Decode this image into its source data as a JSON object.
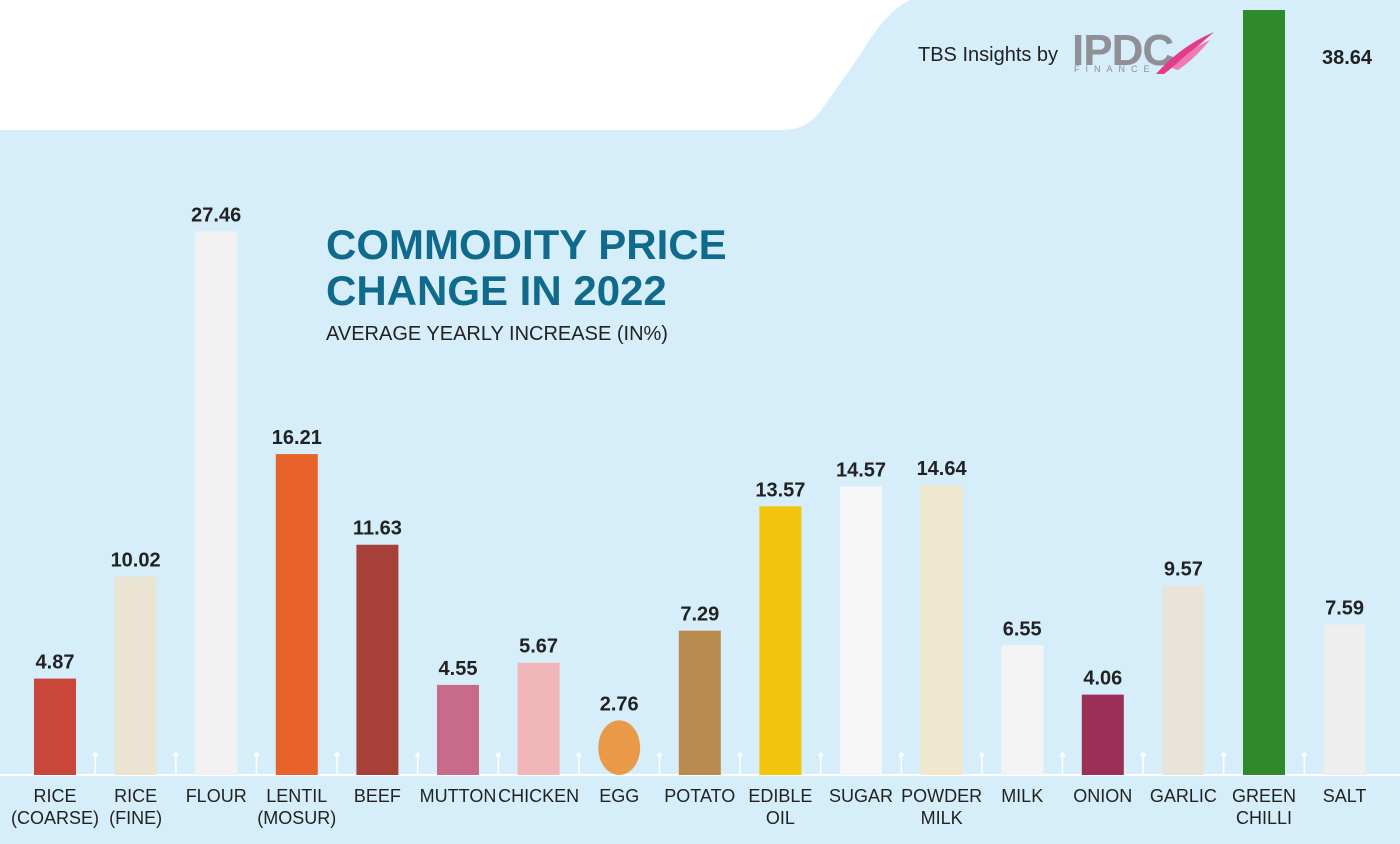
{
  "header": {
    "brand_text": "TBS Insights by",
    "logo_text": "IPDC",
    "logo_subtext": "FINANCE"
  },
  "chart_data": {
    "type": "bar",
    "title": "COMMODITY PRICE CHANGE IN 2022",
    "subtitle": "AVERAGE YEARLY INCREASE (IN%)",
    "xlabel": "",
    "ylabel": "",
    "ylim": [
      0,
      38.64
    ],
    "grid": false,
    "legend": "none",
    "categories": [
      [
        "RICE",
        "(COARSE)"
      ],
      [
        "RICE",
        "(FINE)"
      ],
      [
        "FLOUR"
      ],
      [
        "LENTIL",
        "(MOSUR)"
      ],
      [
        "BEEF"
      ],
      [
        "MUTTON"
      ],
      [
        "CHICKEN"
      ],
      [
        "EGG"
      ],
      [
        "POTATO"
      ],
      [
        "EDIBLE",
        "OIL"
      ],
      [
        "SUGAR"
      ],
      [
        "POWDER",
        "MILK"
      ],
      [
        "MILK"
      ],
      [
        "ONION"
      ],
      [
        "GARLIC"
      ],
      [
        "GREEN",
        "CHILLI"
      ],
      [
        "SALT"
      ]
    ],
    "values": [
      4.87,
      10.02,
      27.46,
      16.21,
      11.63,
      4.55,
      5.67,
      2.76,
      7.29,
      13.57,
      14.57,
      14.64,
      6.55,
      4.06,
      9.57,
      38.64,
      7.59
    ],
    "value_labels": [
      "4.87",
      "10.02",
      "27.46",
      "16.21",
      "11.63",
      "4.55",
      "5.67",
      "2.76",
      "7.29",
      "13.57",
      "14.57",
      "14.64",
      "6.55",
      "4.06",
      "9.57",
      "38.64",
      "7.59"
    ],
    "bar_colors": [
      "#c8463a",
      "#ece4d2",
      "#f1f1f1",
      "#e8622c",
      "#a8403a",
      "#c86a8a",
      "#f0b6b8",
      "#e89a48",
      "#b98a4e",
      "#f2c40c",
      "#f6f6f6",
      "#efe8cf",
      "#f4f4f4",
      "#9b2f55",
      "#e9e4d9",
      "#2f8a2c",
      "#eeeeee"
    ]
  }
}
